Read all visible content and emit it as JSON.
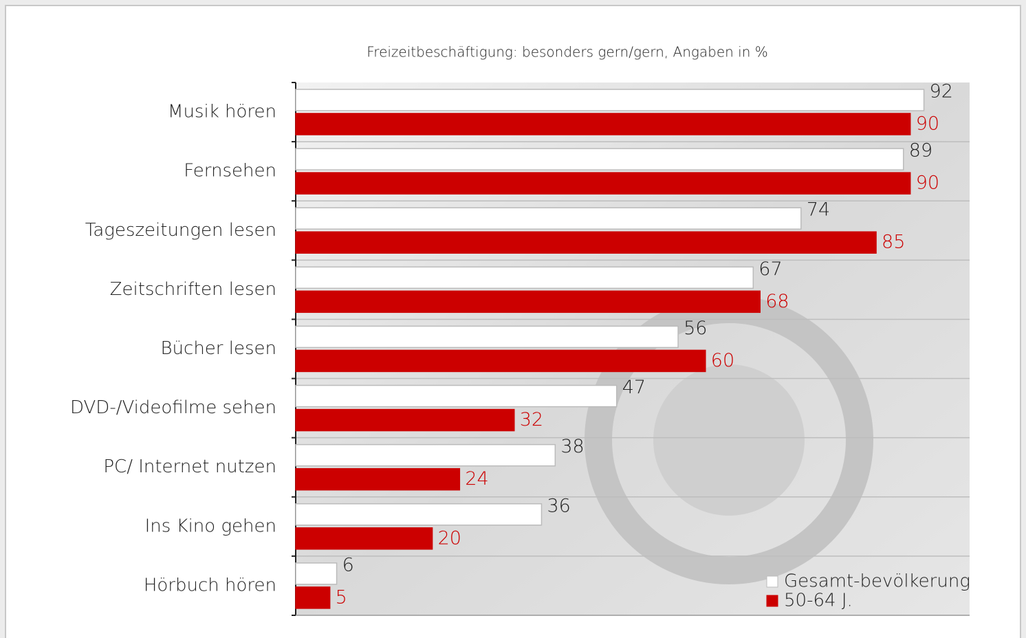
{
  "chart_data": {
    "type": "bar",
    "orientation": "horizontal",
    "title": "Freizeitbeschäftigung: besonders gern/gern, Angaben in %",
    "categories": [
      "Musik hören",
      "Fernsehen",
      "Tageszeitungen lesen",
      "Zeitschriften lesen",
      "Bücher lesen",
      "DVD-/Videofilme sehen",
      "PC/ Internet nutzen",
      "Ins Kino gehen",
      "Hörbuch hören"
    ],
    "series": [
      {
        "name": "Gesamt-bevölkerung",
        "color": "#ffffff",
        "label_color": "#222222",
        "values": [
          92,
          89,
          74,
          67,
          56,
          47,
          38,
          36,
          6
        ]
      },
      {
        "name": "50-64 J.",
        "color": "#cc0000",
        "label_color": "#cc0000",
        "values": [
          90,
          90,
          85,
          68,
          60,
          32,
          24,
          20,
          5
        ]
      }
    ],
    "xlim": [
      0,
      100
    ],
    "legend": "lower right"
  }
}
